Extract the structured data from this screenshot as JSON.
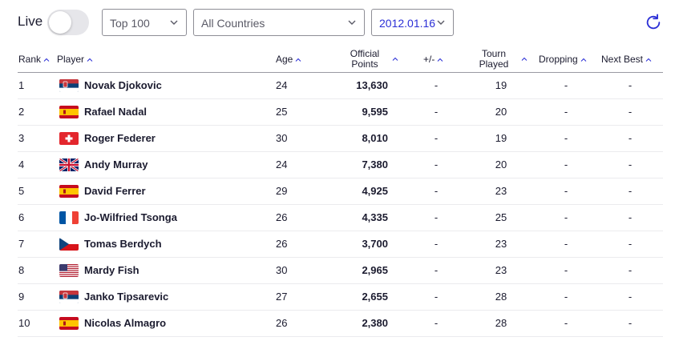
{
  "controls": {
    "live_label": "Live",
    "live_on": false,
    "top_select": "Top 100",
    "country_select": "All Countries",
    "date_select": "2012.01.16"
  },
  "colors": {
    "accent": "#2b2fd6",
    "text": "#1b1b2f"
  },
  "icons": {
    "refresh": "refresh-icon",
    "sort": "sort-caret-icon",
    "dropdown": "chevron-down-icon"
  },
  "table": {
    "headers": {
      "rank": "Rank",
      "player": "Player",
      "age": "Age",
      "points_line1": "Official",
      "points_line2": "Points",
      "change": "+/-",
      "tourn_line1": "Tourn",
      "tourn_line2": "Played",
      "dropping": "Dropping",
      "next_best": "Next Best"
    },
    "rows": [
      {
        "rank": "1",
        "flag": "serbia",
        "name": "Novak Djokovic",
        "age": "24",
        "points": "13,630",
        "change": "-",
        "tourn": "19",
        "dropping": "-",
        "next_best": "-"
      },
      {
        "rank": "2",
        "flag": "spain",
        "name": "Rafael Nadal",
        "age": "25",
        "points": "9,595",
        "change": "-",
        "tourn": "20",
        "dropping": "-",
        "next_best": "-"
      },
      {
        "rank": "3",
        "flag": "switzerland",
        "name": "Roger Federer",
        "age": "30",
        "points": "8,010",
        "change": "-",
        "tourn": "19",
        "dropping": "-",
        "next_best": "-"
      },
      {
        "rank": "4",
        "flag": "uk",
        "name": "Andy Murray",
        "age": "24",
        "points": "7,380",
        "change": "-",
        "tourn": "20",
        "dropping": "-",
        "next_best": "-"
      },
      {
        "rank": "5",
        "flag": "spain",
        "name": "David Ferrer",
        "age": "29",
        "points": "4,925",
        "change": "-",
        "tourn": "23",
        "dropping": "-",
        "next_best": "-"
      },
      {
        "rank": "6",
        "flag": "france",
        "name": "Jo-Wilfried Tsonga",
        "age": "26",
        "points": "4,335",
        "change": "-",
        "tourn": "25",
        "dropping": "-",
        "next_best": "-"
      },
      {
        "rank": "7",
        "flag": "czech",
        "name": "Tomas Berdych",
        "age": "26",
        "points": "3,700",
        "change": "-",
        "tourn": "23",
        "dropping": "-",
        "next_best": "-"
      },
      {
        "rank": "8",
        "flag": "usa",
        "name": "Mardy Fish",
        "age": "30",
        "points": "2,965",
        "change": "-",
        "tourn": "23",
        "dropping": "-",
        "next_best": "-"
      },
      {
        "rank": "9",
        "flag": "serbia",
        "name": "Janko Tipsarevic",
        "age": "27",
        "points": "2,655",
        "change": "-",
        "tourn": "28",
        "dropping": "-",
        "next_best": "-"
      },
      {
        "rank": "10",
        "flag": "spain",
        "name": "Nicolas Almagro",
        "age": "26",
        "points": "2,380",
        "change": "-",
        "tourn": "28",
        "dropping": "-",
        "next_best": "-"
      }
    ]
  }
}
